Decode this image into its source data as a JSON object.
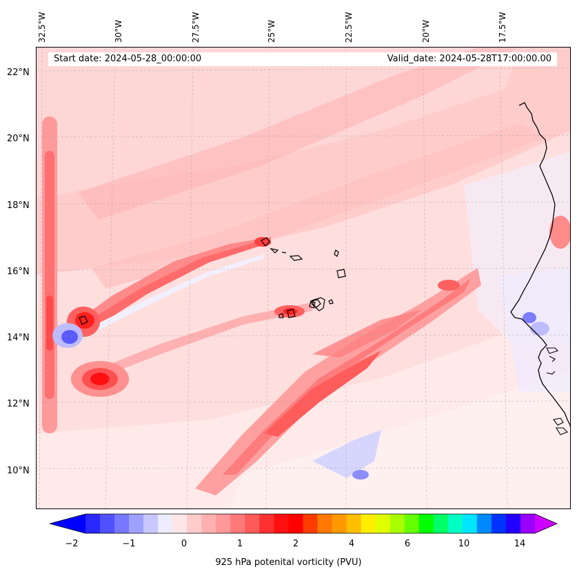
{
  "header": {
    "start_date": "Start date: 2024-05-28_00:00:00",
    "valid_date": "Valid_date: 2024-05-28T17:00:00.00"
  },
  "longitude_labels": [
    "32.5°W",
    "30°W",
    "27.5°W",
    "25°W",
    "22.5°W",
    "20°W",
    "17.5°W"
  ],
  "latitude_labels": [
    "22°N",
    "20°N",
    "18°N",
    "16°N",
    "14°N",
    "12°N",
    "10°N"
  ],
  "colorbar": {
    "label": "925 hPa potenital vorticity (PVU)",
    "tick_labels": [
      "−2",
      "−1",
      "0",
      "1",
      "2",
      "4",
      "6",
      "10",
      "14"
    ],
    "colors": [
      "#0000ff",
      "#2828ff",
      "#5050ff",
      "#7878ff",
      "#a0a0ff",
      "#c8c8ff",
      "#ededff",
      "#ffe6e6",
      "#ffcccc",
      "#ffb0b0",
      "#ff9898",
      "#ff7878",
      "#ff5a5a",
      "#ff3030",
      "#ff1010",
      "#ff0000",
      "#ff3c00",
      "#ff7800",
      "#ff9900",
      "#ffbf00",
      "#ffee00",
      "#e0ff00",
      "#a8ff00",
      "#66ff00",
      "#00ff00",
      "#00ff66",
      "#00ffc4",
      "#00e5ff",
      "#0088ff",
      "#0033ff",
      "#2200ff",
      "#9900ff",
      "#cc00ff"
    ]
  },
  "chart_data": {
    "type": "contour map",
    "variable": "925 hPa potenital vorticity (PVU)",
    "lon_range": [
      "32.5°W",
      "15.5°W"
    ],
    "lat_range": [
      "9°N",
      "22.8°N"
    ]
  }
}
